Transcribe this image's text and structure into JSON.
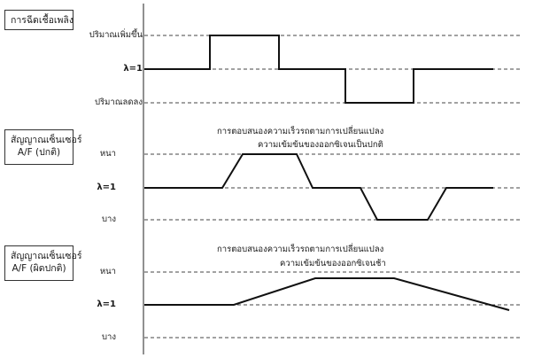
{
  "panels": [
    {
      "box_lines": [
        "การฉีดเชื้อเพลิง"
      ],
      "levels": [
        "ปริมาณเพิ่มขึ้น",
        "λ=1",
        "ปริมาณลดลง"
      ],
      "notes": []
    },
    {
      "box_lines": [
        "สัญญาณเซ็นเซอร์",
        "A/F (ปกติ)"
      ],
      "levels": [
        "หนา",
        "λ=1",
        "บาง"
      ],
      "notes": [
        "การตอบสนองความเร็วรถตามการเปลี่ยนแปลง",
        "ความเข้มข้นของออกซิเจนเป็นปกติ"
      ]
    },
    {
      "box_lines": [
        "สัญญาณเซ็นเซอร์",
        "A/F (ผิดปกติ)"
      ],
      "levels": [
        "หนา",
        "λ=1",
        "บาง"
      ],
      "notes": [
        "การตอบสนองความเร็วรถตามการเปลี่ยนแปลง",
        "ความเข้มข้นของออกซิเจนช้า"
      ]
    }
  ]
}
